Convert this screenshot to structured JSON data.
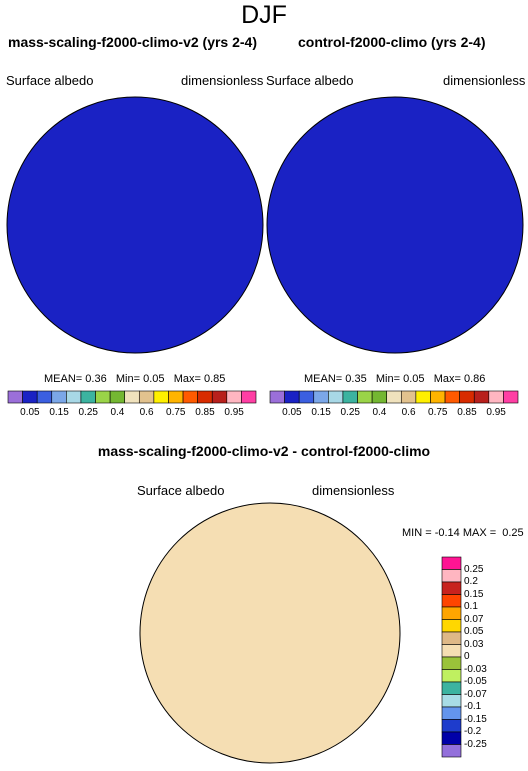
{
  "season": "DJF",
  "panels": [
    {
      "title": "mass-scaling-f2000-climo-v2 (yrs 2-4)",
      "variable": "Surface albedo",
      "units": "dimensionless",
      "stats": {
        "mean_label": "MEAN=",
        "mean": "0.36",
        "min_label": "Min=",
        "min": "0.05",
        "max_label": "Max=",
        "max": "0.85"
      }
    },
    {
      "title": "control-f2000-climo (yrs 2-4)",
      "variable": "Surface albedo",
      "units": "dimensionless",
      "stats": {
        "mean_label": "MEAN=",
        "mean": "0.35",
        "min_label": "Min=",
        "min": "0.05",
        "max_label": "Max=",
        "max": "0.86"
      }
    }
  ],
  "diff": {
    "title": "mass-scaling-f2000-climo-v2 - control-f2000-climo",
    "variable": "Surface albedo",
    "units": "dimensionless",
    "stats": "MIN = -0.14 MAX =  0.25"
  },
  "colorbar_levels": [
    "0.05",
    "0.15",
    "0.25",
    "0.4",
    "0.6",
    "0.75",
    "0.85",
    "0.95"
  ],
  "colorbar_colors": [
    "#9b6fd9",
    "#1a22c4",
    "#3b5fe0",
    "#7ba7e8",
    "#a8d8e6",
    "#3cb3a0",
    "#9ad448",
    "#74b732",
    "#f0e2bd",
    "#e2c28e",
    "#fff000",
    "#ffb400",
    "#ff5a00",
    "#d82b00",
    "#b8201c",
    "#ffb6c1",
    "#ff3fa4"
  ],
  "diff_levels": [
    "0.25",
    "0.2",
    "0.15",
    "0.1",
    "0.07",
    "0.05",
    "0.03",
    "0",
    "-0.03",
    "-0.05",
    "-0.07",
    "-0.1",
    "-0.15",
    "-0.2",
    "-0.25"
  ],
  "diff_colors": [
    "#ff1493",
    "#ffb6c1",
    "#c8221e",
    "#ff4500",
    "#ffa500",
    "#ffd700",
    "#deb887",
    "#f5deb3",
    "#9ac33a",
    "#bff060",
    "#3cb3a0",
    "#a8dce6",
    "#6495ed",
    "#1e3ccc",
    "#0000a8",
    "#9370db"
  ],
  "map_colors": {
    "ocean": "#1a22c4",
    "ice": "#ff4500",
    "coast": "#000000"
  }
}
